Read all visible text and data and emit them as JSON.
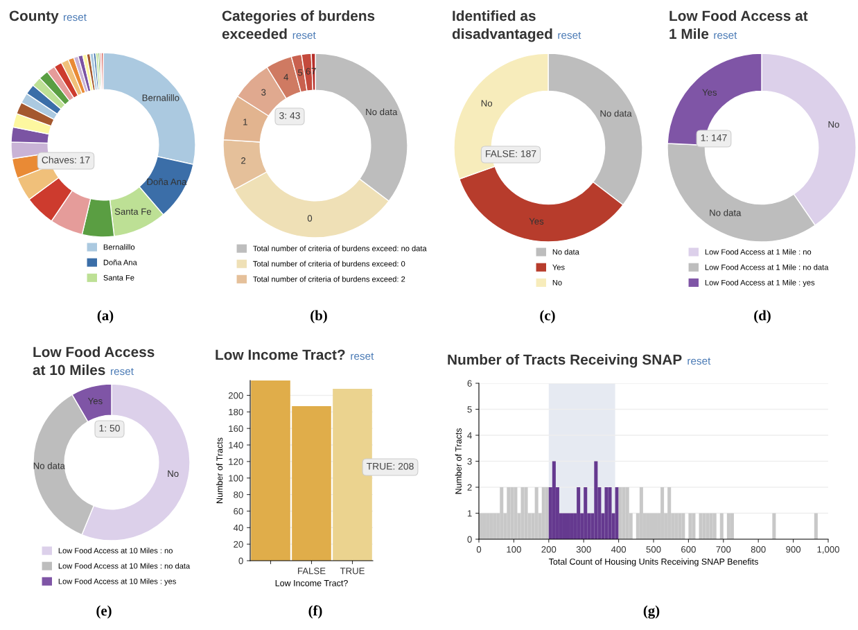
{
  "chart_data": [
    {
      "type": "donut",
      "title": "County",
      "subtitle": "reset",
      "categories": [
        "Bernalillo",
        "Doña Ana",
        "Santa Fe",
        null,
        null,
        null,
        null,
        null,
        null,
        null,
        null,
        null,
        null,
        null,
        null,
        null,
        null,
        null,
        null,
        null,
        null,
        null,
        null,
        null,
        null,
        null,
        null,
        null,
        null,
        null
      ],
      "values": [
        28.4,
        10.3,
        9.4,
        5.6,
        5.8,
        5.4,
        4.2,
        3.5,
        2.9,
        2.6,
        2.4,
        2.1,
        1.8,
        1.8,
        1.7,
        1.7,
        1.5,
        1.4,
        1.3,
        1.0,
        0.8,
        0.8,
        0.7,
        0.6,
        0.6,
        0.4,
        0.4,
        0.3,
        0.3,
        0.3
      ],
      "colors": [
        "#abc9e0",
        "#3b6ea8",
        "#bde095",
        "#5a9e42",
        "#e59c9a",
        "#cd3b2e",
        "#f0c07a",
        "#e98a35",
        "#c9b3d6",
        "#7b54a3",
        "#fdf7a0",
        "#a4582e",
        "#abc9e0",
        "#3b6ea8",
        "#bde095",
        "#5a9e42",
        "#e59c9a",
        "#cd3b2e",
        "#f0c07a",
        "#e98a35",
        "#c9b3d6",
        "#7b54a3",
        "#fdf7a0",
        "#a4582e",
        "#abc9e0",
        "#3b6ea8",
        "#bde095",
        "#5a9e42",
        "#e59c9a",
        "#cd3b2e"
      ],
      "legend": "bottom",
      "annotations": [
        "Chaves: 17",
        "Bernalillo",
        "Doña Ana",
        "Santa Fe",
        "(a)"
      ]
    },
    {
      "type": "donut",
      "title": "Categories of burdens exceeded",
      "subtitle": "reset",
      "categories": [
        "Total number of criteria of burdens exceed: no data",
        "Total number of criteria of burdens exceed: 0",
        "Total number of criteria of burdens exceed: 2",
        null,
        null,
        null,
        null,
        null,
        null
      ],
      "values": [
        35.3,
        31.8,
        8.9,
        8.0,
        7.2,
        4.6,
        1.8,
        1.7,
        0.7
      ],
      "colors": [
        "#bdbdbd",
        "#efe0b6",
        "#e5c09a",
        "#e2b48f",
        "#e0a98f",
        "#cf7a62",
        "#c9614f",
        "#c44a3c",
        "#b72f2a"
      ],
      "legend": "bottom",
      "annotations": [
        "3: 43",
        "No data",
        "0",
        "2",
        "1",
        "3",
        "4",
        "5",
        "6",
        "7",
        "(b)"
      ]
    },
    {
      "type": "donut",
      "title": "Identified as disadvantaged",
      "subtitle": "reset",
      "categories": [
        "No data",
        "Yes",
        "No"
      ],
      "values": [
        35.4,
        34.2,
        30.4
      ],
      "colors": [
        "#bdbdbd",
        "#b73c2c",
        "#f7ecbb"
      ],
      "legend": "bottom",
      "annotations": [
        "FALSE: 187",
        "No data",
        "Yes",
        "No",
        "(c)"
      ]
    },
    {
      "type": "donut",
      "title": "Low Food Access at 1 Mile",
      "subtitle": "reset",
      "categories": [
        "Low Food Access at 1 Mile : no",
        "Low Food Access at 1 Mile : no data",
        "Low Food Access at 1 Mile : yes"
      ],
      "values": [
        40.4,
        35.3,
        24.3
      ],
      "colors": [
        "#dcd0ea",
        "#bdbdbd",
        "#7f55a6"
      ],
      "legend": "bottom",
      "annotations": [
        "1: 147",
        "No",
        "No data",
        "Yes",
        "(d)"
      ]
    },
    {
      "type": "donut",
      "title": "Low Food Access at 10 Miles",
      "subtitle": "reset",
      "categories": [
        "Low Food Access at 10 Miles : no",
        "Low Food Access at 10 Miles : no data",
        "Low Food Access at 10 Miles : yes"
      ],
      "values": [
        56.2,
        35.4,
        8.4
      ],
      "colors": [
        "#dcd0ea",
        "#bdbdbd",
        "#7f55a6"
      ],
      "legend": "bottom",
      "annotations": [
        "1: 50",
        "No",
        "No data",
        "Yes",
        "(e)"
      ]
    },
    {
      "type": "bar",
      "title": "Low Income Tract?",
      "subtitle": "reset",
      "categories": [
        null,
        "FALSE",
        "TRUE"
      ],
      "values": [
        218,
        187,
        208
      ],
      "colors": [
        "#e0ad4a",
        "#e0ad4a",
        "#ebd38f"
      ],
      "xlabel": "Low Income Tract?",
      "ylabel": "Number of Tracts",
      "ylim": [
        0,
        218
      ],
      "yticks": [
        0,
        20,
        40,
        60,
        80,
        100,
        120,
        140,
        160,
        180,
        200
      ],
      "grid": "y",
      "annotations": [
        "TRUE: 208",
        "(f)"
      ]
    },
    {
      "type": "histogram",
      "title": "Number of Tracts Receiving SNAP",
      "subtitle": "reset",
      "bins": [
        0,
        10,
        20,
        30,
        40,
        50,
        60,
        70,
        80,
        90,
        100,
        110,
        120,
        130,
        140,
        150,
        160,
        170,
        180,
        190,
        200,
        210,
        220,
        230,
        240,
        250,
        260,
        270,
        280,
        290,
        300,
        310,
        320,
        330,
        340,
        350,
        360,
        370,
        380,
        390,
        400,
        410,
        420,
        430,
        440,
        450,
        460,
        470,
        480,
        490,
        500,
        510,
        520,
        530,
        540,
        550,
        560,
        570,
        580,
        590,
        600,
        610,
        620,
        630,
        640,
        650,
        660,
        670,
        680,
        690,
        700,
        710,
        720,
        730,
        740,
        750,
        760,
        770,
        780,
        790,
        800,
        810,
        820,
        830,
        840,
        850,
        860,
        870,
        880,
        890,
        900,
        910,
        920,
        930,
        940,
        950,
        960,
        970,
        980,
        990,
        1000
      ],
      "values": [
        1,
        1,
        1,
        1,
        1,
        1,
        2,
        1,
        2,
        2,
        2,
        1,
        2,
        2,
        1,
        1,
        2,
        1,
        2,
        2,
        2,
        3,
        2,
        1,
        1,
        1,
        1,
        1,
        2,
        1,
        2,
        1,
        1,
        3,
        2,
        1,
        2,
        2,
        1,
        2,
        2,
        2,
        2,
        1,
        0,
        1,
        2,
        1,
        1,
        1,
        1,
        1,
        2,
        1,
        2,
        1,
        1,
        1,
        1,
        0,
        1,
        1,
        0,
        1,
        1,
        1,
        1,
        1,
        0,
        1,
        0,
        1,
        1,
        0,
        0,
        0,
        0,
        0,
        0,
        0,
        0,
        0,
        0,
        0,
        1,
        0,
        0,
        0,
        0,
        0,
        0,
        0,
        0,
        0,
        0,
        0,
        1,
        0,
        0,
        0
      ],
      "colors": [
        "#c8c8c8",
        "#c8c8c8",
        "#c8c8c8",
        "#c8c8c8",
        "#c8c8c8",
        "#c8c8c8",
        "#c8c8c8",
        "#c8c8c8",
        "#c8c8c8",
        "#c8c8c8",
        "#c8c8c8",
        "#c8c8c8",
        "#c8c8c8",
        "#c8c8c8",
        "#c8c8c8",
        "#c8c8c8",
        "#c8c8c8",
        "#c8c8c8",
        "#c8c8c8",
        "#c8c8c8",
        "#65398f",
        "#65398f",
        "#65398f",
        "#65398f",
        "#65398f",
        "#65398f",
        "#65398f",
        "#65398f",
        "#65398f",
        "#65398f",
        "#65398f",
        "#65398f",
        "#65398f",
        "#65398f",
        "#65398f",
        "#65398f",
        "#65398f",
        "#65398f",
        "#65398f",
        "#65398f",
        "#c8c8c8",
        "#c8c8c8",
        "#c8c8c8",
        "#c8c8c8",
        "#c8c8c8",
        "#c8c8c8",
        "#c8c8c8",
        "#c8c8c8",
        "#c8c8c8",
        "#c8c8c8",
        "#c8c8c8",
        "#c8c8c8",
        "#c8c8c8",
        "#c8c8c8",
        "#c8c8c8",
        "#c8c8c8",
        "#c8c8c8",
        "#c8c8c8",
        "#c8c8c8",
        "#c8c8c8",
        "#c8c8c8",
        "#c8c8c8",
        "#c8c8c8",
        "#c8c8c8",
        "#c8c8c8",
        "#c8c8c8",
        "#c8c8c8",
        "#c8c8c8",
        "#c8c8c8",
        "#c8c8c8",
        "#c8c8c8",
        "#c8c8c8",
        "#c8c8c8",
        "#c8c8c8",
        "#c8c8c8",
        "#c8c8c8",
        "#c8c8c8",
        "#c8c8c8",
        "#c8c8c8",
        "#c8c8c8",
        "#c8c8c8",
        "#c8c8c8",
        "#c8c8c8",
        "#c8c8c8",
        "#c8c8c8",
        "#c8c8c8",
        "#c8c8c8",
        "#c8c8c8",
        "#c8c8c8",
        "#c8c8c8",
        "#c8c8c8",
        "#c8c8c8",
        "#c8c8c8",
        "#c8c8c8",
        "#c8c8c8",
        "#c8c8c8",
        "#c8c8c8",
        "#c8c8c8",
        "#c8c8c8",
        "#c8c8c8"
      ],
      "xlabel": "Total Count of Housing Units Receiving SNAP Benefits",
      "ylabel": "Number of Tracts",
      "xlim": [
        0,
        1000
      ],
      "xticks": [
        0,
        100,
        200,
        300,
        400,
        500,
        600,
        700,
        800,
        900,
        {
          "value": 1000,
          "label": "1,000"
        }
      ],
      "ylim": [
        0,
        6
      ],
      "yticks": [
        0,
        1,
        2,
        3,
        4,
        5,
        6
      ],
      "grid": "y",
      "bands": [
        {
          "axis": "x",
          "from": 200,
          "to": 390,
          "color": "#e6eaf2"
        }
      ],
      "annotations": [
        "(g)"
      ]
    }
  ]
}
